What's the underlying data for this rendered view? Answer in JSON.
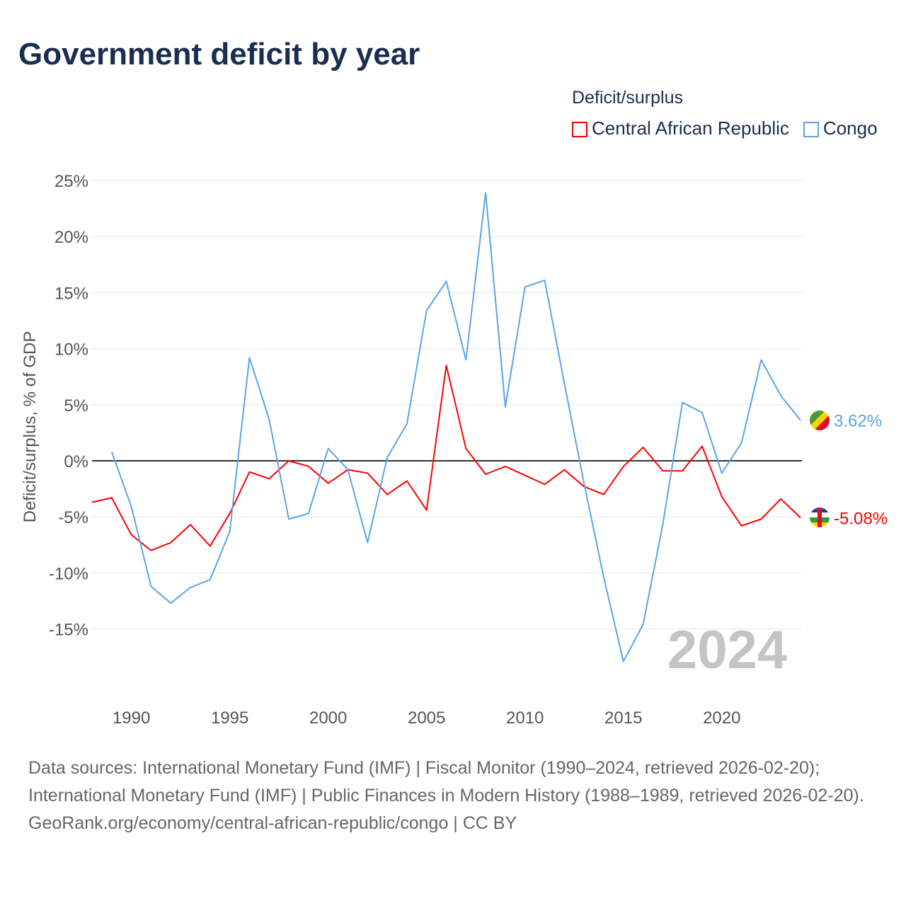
{
  "title": "Government deficit by year",
  "legend": {
    "title": "Deficit/surplus",
    "items": [
      {
        "label": "Central African Republic",
        "color": "#ff0000"
      },
      {
        "label": "Congo",
        "color": "#5ba4e8"
      }
    ]
  },
  "year_watermark": "2024",
  "sources": {
    "line1": "Data sources: International Monetary Fund (IMF) | Fiscal Monitor (1990–2024, retrieved 2026-02-20); International Monetary Fund (IMF) | Public Finances in Modern History (1988–1989, retrieved 2026-02-20).",
    "line2": "GeoRank.org/economy/central-african-republic/congo | CC BY"
  },
  "chart_data": {
    "type": "line",
    "title": "Government deficit by year",
    "ylabel": "Deficit/surplus, % of GDP",
    "xlabel": "",
    "ylim": [
      -20,
      25
    ],
    "xlim": [
      1988,
      2024
    ],
    "yticks": [
      25,
      20,
      15,
      10,
      5,
      0,
      -5,
      -10,
      -15
    ],
    "ytick_labels": [
      "25%",
      "20%",
      "15%",
      "10%",
      "5%",
      "0%",
      "-5%",
      "-10%",
      "-15%"
    ],
    "xticks": [
      1990,
      1995,
      2000,
      2005,
      2010,
      2015,
      2020
    ],
    "xtick_labels": [
      "1990",
      "1995",
      "2000",
      "2005",
      "2010",
      "2015",
      "2020"
    ],
    "grid": true,
    "legend_position": "top-right",
    "series": [
      {
        "name": "Central African Republic",
        "color": "#ff0000",
        "end_label": "-5.08%",
        "start": 1988,
        "values": [
          -3.7,
          -3.3,
          -6.6,
          -8.0,
          -7.3,
          -5.7,
          -7.6,
          -4.7,
          -1.0,
          -1.6,
          0.0,
          -0.5,
          -2.0,
          -0.8,
          -1.1,
          -3.0,
          -1.8,
          -4.4,
          8.5,
          1.1,
          -1.2,
          -0.5,
          -1.3,
          -2.1,
          -0.8,
          -2.3,
          -3.0,
          -0.5,
          1.2,
          -0.9,
          -0.9,
          1.3,
          -3.2,
          -5.8,
          -5.2,
          -3.4,
          -5.08
        ]
      },
      {
        "name": "Congo",
        "color": "#5ba4e8",
        "end_label": "3.62%",
        "start": 1989,
        "values": [
          0.8,
          -4.1,
          -11.2,
          -12.7,
          -11.3,
          -10.6,
          -6.3,
          9.2,
          3.7,
          -5.2,
          -4.7,
          1.1,
          -0.8,
          -7.3,
          0.3,
          3.3,
          13.4,
          16.0,
          9.0,
          23.9,
          4.8,
          15.5,
          16.1,
          6.9,
          -2.0,
          -10.4,
          -17.9,
          -14.6,
          -5.7,
          5.2,
          4.3,
          -1.1,
          1.6,
          9.0,
          5.8,
          3.62
        ]
      }
    ]
  }
}
